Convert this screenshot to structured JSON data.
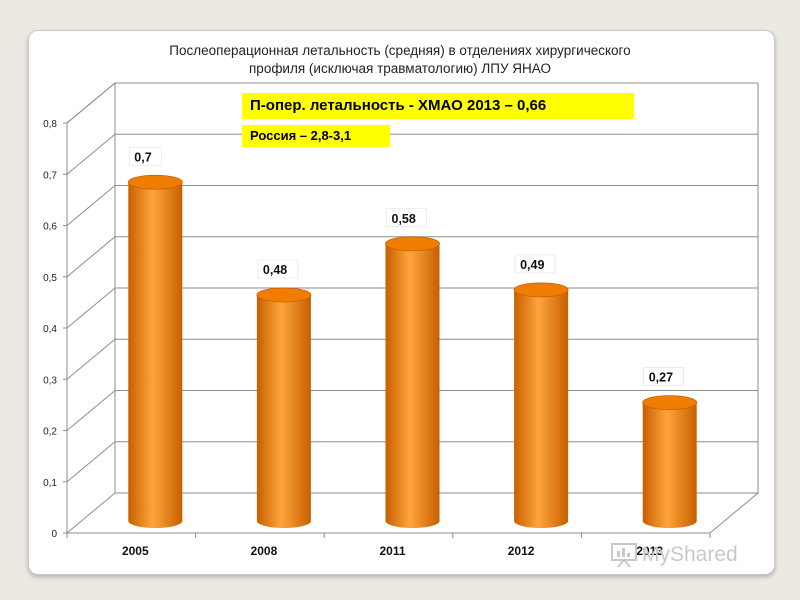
{
  "chart_data": {
    "type": "bar",
    "title_lines": [
      "Послеоперационная летальность (средняя) в отделениях хирургического",
      "профиля (исключая травматологию) ЛПУ ЯНАО"
    ],
    "categories": [
      "2005",
      "2008",
      "2011",
      "2012",
      "2013"
    ],
    "values": [
      0.7,
      0.48,
      0.58,
      0.49,
      0.27
    ],
    "data_labels": [
      "0,7",
      "0,48",
      "0,58",
      "0,49",
      "0,27"
    ],
    "ylim": [
      0,
      0.8
    ],
    "yticks": [
      0,
      0.1,
      0.2,
      0.3,
      0.4,
      0.5,
      0.6,
      0.7,
      0.8
    ],
    "ytick_labels": [
      "0",
      "0,1",
      "0,2",
      "0,3",
      "0,4",
      "0,5",
      "0,6",
      "0,7",
      "0,8"
    ],
    "grid": true,
    "bar_style": "3d-cylinder",
    "colors": {
      "bar": "#f07d00",
      "bar_light": "#ffa53a",
      "bar_dark": "#c85f00",
      "grid": "#8c8c8c"
    }
  },
  "annotations": {
    "main": "П-опер. летальность -  ХМАО 2013 – 0,66",
    "russia": "Россия –  2,8-3,1",
    "highlight_color": "#ffff00"
  },
  "watermark": {
    "text": "MyShared",
    "icon": "presentation-board-icon"
  }
}
